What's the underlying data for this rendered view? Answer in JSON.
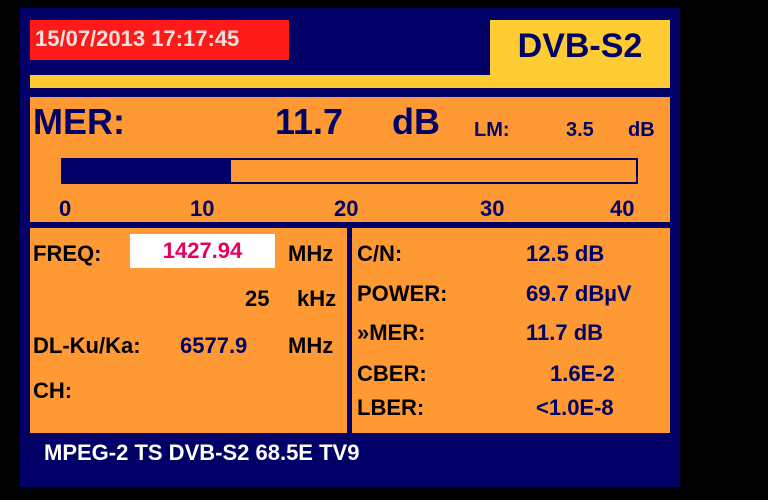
{
  "header": {
    "datetime": "15/07/2013 17:17:45",
    "standard": "DVB-S2"
  },
  "mer": {
    "label": "MER:",
    "value": "11.7",
    "unit": "dB",
    "lm_label": "LM:",
    "lm_value": "3.5",
    "lm_unit": "dB",
    "bar_value": 11.7,
    "bar_max": 40,
    "scale": [
      "0",
      "10",
      "20",
      "30",
      "40"
    ]
  },
  "left": {
    "freq_label": "FREQ:",
    "freq_value": "1427.94",
    "freq_unit": "MHz",
    "offset_value": "25",
    "offset_unit": "kHz",
    "dl_label": "DL-Ku/Ka:",
    "dl_value": "6577.9",
    "dl_unit": "MHz",
    "ch_label": "CH:"
  },
  "right": {
    "rows": [
      {
        "label": "C/N:",
        "value": "12.5 dB"
      },
      {
        "label": "POWER:",
        "value": "69.7 dBµV"
      },
      {
        "label": "»MER:",
        "value": "11.7 dB"
      },
      {
        "label": "CBER:",
        "value": "1.6E-2"
      },
      {
        "label": "LBER:",
        "value": "<1.0E-8"
      }
    ]
  },
  "footer": {
    "text": "MPEG-2 TS DVB-S2 68.5E TV9"
  },
  "colors": {
    "background": "#000066",
    "panel": "#ff9933",
    "accent": "#ffcc33",
    "datetime_bg": "#ff1a1a",
    "freq_text": "#e8005a"
  }
}
